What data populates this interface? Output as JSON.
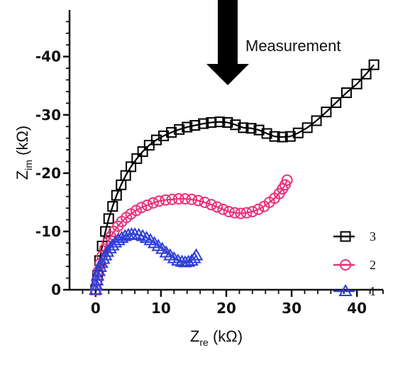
{
  "chart_data": {
    "type": "scatter",
    "annotation": "Measurement",
    "xlabel": {
      "main": "Z",
      "sub": "re",
      "unit": " (kΩ)"
    },
    "ylabel": {
      "main": "Z",
      "sub": "im",
      "unit": " (kΩ)"
    },
    "xlim": [
      -4,
      44
    ],
    "ylim": [
      0,
      48
    ],
    "xticks": [
      0,
      10,
      20,
      30,
      40
    ],
    "yticks": [
      0,
      10,
      20,
      30,
      40
    ],
    "xtick_labels": [
      "0",
      "10",
      "20",
      "30",
      "40"
    ],
    "ytick_labels": [
      "0",
      "-10",
      "-20",
      "-30",
      "-40"
    ],
    "legend_position": "bottom-right",
    "series": [
      {
        "name": "3",
        "color": "#000000",
        "marker": "square",
        "x": [
          0,
          0.3,
          0.6,
          1.0,
          1.5,
          2.0,
          2.6,
          3.2,
          3.9,
          4.6,
          5.4,
          6.3,
          7.2,
          8.2,
          9.3,
          10.4,
          11.6,
          12.8,
          14.0,
          15.2,
          16.5,
          17.7,
          19.0,
          20.2,
          21.4,
          22.6,
          23.8,
          25.0,
          26.2,
          27.4,
          28.6,
          29.8,
          31.0,
          32.4,
          33.8,
          35.3,
          36.8,
          38.4,
          40.0,
          41.4,
          42.6
        ],
        "y": [
          0,
          2.5,
          5.0,
          7.5,
          10.0,
          12.2,
          14.3,
          16.2,
          18.0,
          19.6,
          21.1,
          22.5,
          23.7,
          24.8,
          25.7,
          26.4,
          27.0,
          27.5,
          27.9,
          28.2,
          28.5,
          28.7,
          28.8,
          28.7,
          28.3,
          27.8,
          27.7,
          27.4,
          26.8,
          26.3,
          26.2,
          26.3,
          26.9,
          27.8,
          29.0,
          30.5,
          32.1,
          33.8,
          35.3,
          37.0,
          38.6
        ]
      },
      {
        "name": "2",
        "color": "#e8327a",
        "marker": "circle",
        "x": [
          0,
          0.2,
          0.4,
          0.7,
          1.0,
          1.4,
          1.8,
          2.3,
          2.8,
          3.4,
          4.0,
          4.7,
          5.4,
          6.2,
          7.0,
          7.9,
          8.8,
          9.7,
          10.7,
          11.7,
          12.7,
          13.7,
          14.7,
          15.7,
          16.7,
          17.7,
          18.6,
          19.5,
          20.4,
          21.3,
          22.2,
          23.1,
          24.0,
          24.9,
          25.8,
          26.6,
          27.4,
          28.1,
          28.6,
          29.0,
          29.3
        ],
        "y": [
          0,
          1.6,
          3.1,
          4.5,
          5.8,
          7.0,
          8.1,
          9.1,
          10.0,
          10.9,
          11.7,
          12.4,
          13.0,
          13.6,
          14.1,
          14.5,
          14.9,
          15.2,
          15.4,
          15.5,
          15.6,
          15.6,
          15.5,
          15.3,
          15.0,
          14.6,
          14.2,
          13.8,
          13.4,
          13.2,
          13.1,
          13.2,
          13.4,
          13.8,
          14.3,
          15.0,
          15.7,
          16.5,
          17.3,
          18.0,
          18.8
        ]
      },
      {
        "name": "1",
        "color": "#2f3fd6",
        "marker": "triangle",
        "x": [
          0,
          0.1,
          0.2,
          0.3,
          0.5,
          0.7,
          0.9,
          1.2,
          1.5,
          1.8,
          2.2,
          2.6,
          3.0,
          3.5,
          4.0,
          4.5,
          5.0,
          5.5,
          6.0,
          6.6,
          7.2,
          7.8,
          8.4,
          9.0,
          9.6,
          10.2,
          10.8,
          11.4,
          12.0,
          12.6,
          13.2,
          13.7,
          14.2,
          14.7,
          15.1,
          15.4
        ],
        "y": [
          0,
          0.8,
          1.6,
          2.4,
          3.2,
          3.9,
          4.6,
          5.3,
          5.9,
          6.5,
          7.1,
          7.6,
          8.1,
          8.5,
          8.9,
          9.2,
          9.4,
          9.5,
          9.5,
          9.4,
          9.2,
          8.9,
          8.5,
          8.0,
          7.5,
          7.0,
          6.4,
          5.9,
          5.4,
          5.0,
          4.8,
          4.7,
          4.8,
          5.0,
          5.4,
          5.9
        ]
      }
    ]
  }
}
